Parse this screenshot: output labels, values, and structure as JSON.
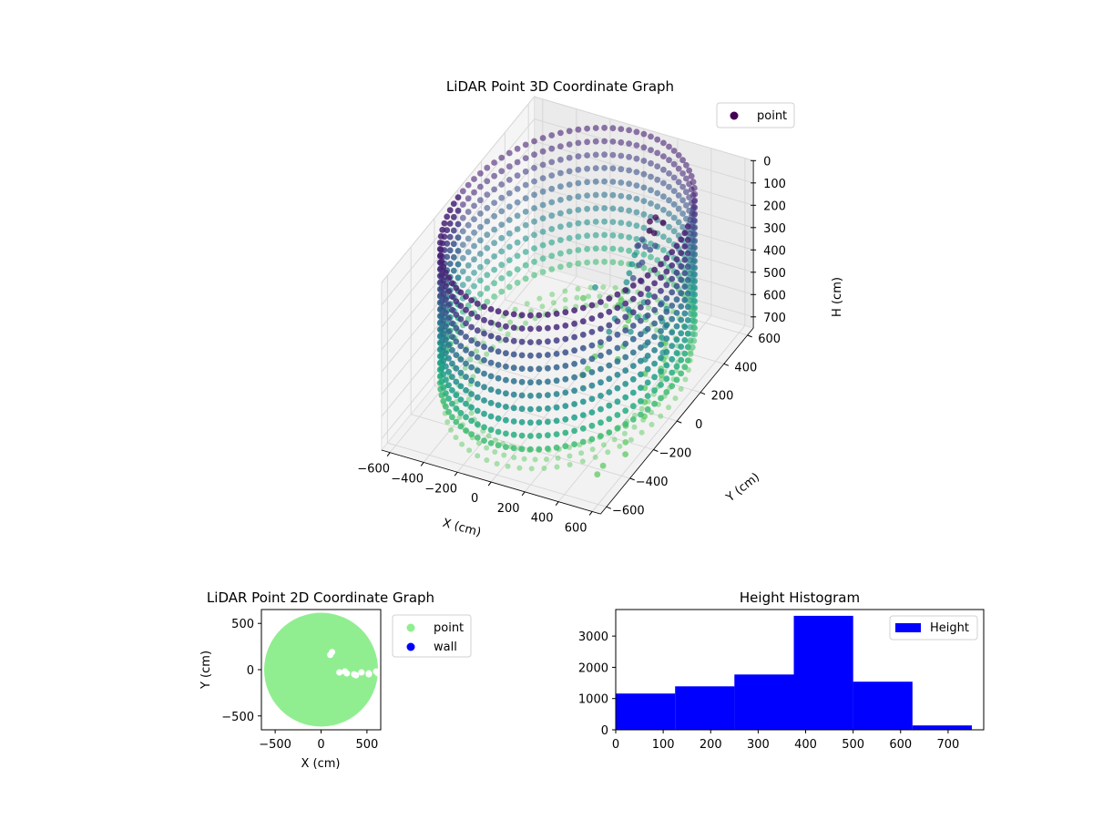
{
  "chart_data": [
    {
      "type": "scatter",
      "title": "LiDAR Point 3D Coordinate Graph",
      "xlabel": "X (cm)",
      "ylabel": "Y (cm)",
      "zlabel": "H (cm)",
      "xlim": [
        -650,
        650
      ],
      "ylim": [
        -650,
        650
      ],
      "zlim": [
        0,
        750
      ],
      "z_inverted": true,
      "x_ticks": [
        "−600",
        "−400",
        "−200",
        "0",
        "200",
        "400",
        "600"
      ],
      "y_ticks": [
        "−600",
        "−400",
        "−200",
        "0",
        "200",
        "400",
        "600"
      ],
      "z_ticks": [
        "0",
        "100",
        "200",
        "300",
        "400",
        "500",
        "600",
        "700"
      ],
      "grid": true,
      "colormap": [
        "#440154",
        "#3b528b",
        "#21918c",
        "#5ec962"
      ],
      "legend": [
        {
          "label": "point",
          "color": "#440154"
        }
      ],
      "legend_position": "top-right",
      "wall": {
        "radius": 620,
        "rings": [
          [
            0,
            "#482173"
          ],
          [
            60,
            "#472a7a"
          ],
          [
            120,
            "#433e85"
          ],
          [
            180,
            "#3b528b"
          ],
          [
            240,
            "#34618d"
          ],
          [
            300,
            "#2c728e"
          ],
          [
            360,
            "#26818e"
          ],
          [
            420,
            "#21918c"
          ],
          [
            480,
            "#1fa088"
          ],
          [
            540,
            "#28ae80"
          ],
          [
            600,
            "#3fbc73"
          ]
        ],
        "floor_color": "#5ec962"
      },
      "interior_points": [
        [
          280,
          300,
          130
        ],
        [
          270,
          310,
          180
        ],
        [
          260,
          290,
          240
        ],
        [
          300,
          320,
          120
        ],
        [
          320,
          280,
          160
        ],
        [
          250,
          250,
          300
        ],
        [
          230,
          230,
          350
        ],
        [
          210,
          210,
          400
        ],
        [
          190,
          180,
          450
        ],
        [
          170,
          160,
          500
        ],
        [
          150,
          140,
          550
        ],
        [
          120,
          110,
          600
        ],
        [
          100,
          90,
          640
        ],
        [
          80,
          60,
          680
        ],
        [
          60,
          40,
          700
        ],
        [
          300,
          200,
          330
        ],
        [
          350,
          150,
          380
        ],
        [
          380,
          120,
          420
        ],
        [
          400,
          90,
          460
        ],
        [
          420,
          60,
          500
        ],
        [
          440,
          30,
          540
        ],
        [
          460,
          0,
          580
        ],
        [
          480,
          -30,
          620
        ],
        [
          500,
          -60,
          660
        ],
        [
          520,
          -90,
          700
        ],
        [
          200,
          350,
          260
        ],
        [
          150,
          380,
          320
        ],
        [
          120,
          400,
          380
        ],
        [
          90,
          420,
          440
        ],
        [
          60,
          440,
          500
        ],
        [
          30,
          460,
          560
        ],
        [
          0,
          480,
          620
        ],
        [
          -30,
          500,
          680
        ],
        [
          -60,
          520,
          720
        ],
        [
          330,
          340,
          150
        ],
        [
          340,
          260,
          200
        ],
        [
          290,
          220,
          260
        ],
        [
          240,
          260,
          220
        ],
        [
          260,
          330,
          280
        ],
        [
          310,
          250,
          420
        ],
        [
          290,
          180,
          480
        ],
        [
          270,
          150,
          530
        ],
        [
          250,
          120,
          580
        ],
        [
          230,
          100,
          630
        ],
        [
          180,
          260,
          520
        ],
        [
          160,
          300,
          560
        ],
        [
          140,
          330,
          600
        ],
        [
          110,
          360,
          650
        ],
        [
          80,
          380,
          700
        ],
        [
          420,
          200,
          400
        ],
        [
          450,
          160,
          450
        ],
        [
          470,
          130,
          500
        ],
        [
          490,
          110,
          550
        ],
        [
          500,
          80,
          600
        ],
        [
          380,
          300,
          500
        ],
        [
          400,
          260,
          550
        ],
        [
          420,
          230,
          600
        ],
        [
          430,
          200,
          650
        ],
        [
          440,
          170,
          700
        ],
        [
          520,
          -250,
          640
        ],
        [
          540,
          -280,
          690
        ],
        [
          560,
          -310,
          720
        ],
        [
          -100,
          380,
          560
        ],
        [
          -150,
          350,
          600
        ]
      ],
      "outlier_points": [
        [
          540,
          -520,
          680
        ],
        [
          560,
          -500,
          650
        ]
      ]
    },
    {
      "type": "scatter",
      "title": "LiDAR Point 2D Coordinate Graph",
      "xlabel": "X (cm)",
      "ylabel": "Y (cm)",
      "xlim": [
        -650,
        650
      ],
      "ylim": [
        -650,
        650
      ],
      "x_ticks": [
        "−500",
        "0",
        "500"
      ],
      "y_ticks": [
        "−500",
        "0",
        "500"
      ],
      "grid": false,
      "series": [
        {
          "name": "point",
          "color": "#90ee90"
        },
        {
          "name": "wall",
          "color": "#0000ff"
        }
      ],
      "disk_radius": 620,
      "gap_points": [
        [
          200,
          -30
        ],
        [
          280,
          -40
        ],
        [
          360,
          -50
        ],
        [
          440,
          -30
        ],
        [
          520,
          -40
        ],
        [
          600,
          -20
        ],
        [
          620,
          -40
        ],
        [
          520,
          -50
        ],
        [
          380,
          -60
        ],
        [
          260,
          -20
        ],
        [
          100,
          160
        ],
        [
          120,
          190
        ]
      ],
      "legend_position": "outside-right"
    },
    {
      "type": "bar",
      "title": "Height Histogram",
      "xlabel": "",
      "ylabel": "",
      "xlim": [
        0,
        775
      ],
      "ylim": [
        0,
        3850
      ],
      "x_ticks": [
        "0",
        "100",
        "200",
        "300",
        "400",
        "500",
        "600",
        "700"
      ],
      "y_ticks": [
        "0",
        "1000",
        "2000",
        "3000"
      ],
      "bin_edges": [
        0,
        125,
        250,
        375,
        500,
        625,
        750
      ],
      "values": [
        1160,
        1390,
        1770,
        3650,
        1540,
        140
      ],
      "color": "#0000ff",
      "legend": [
        {
          "label": "Height",
          "color": "#0000ff"
        }
      ],
      "legend_position": "top-right"
    }
  ]
}
